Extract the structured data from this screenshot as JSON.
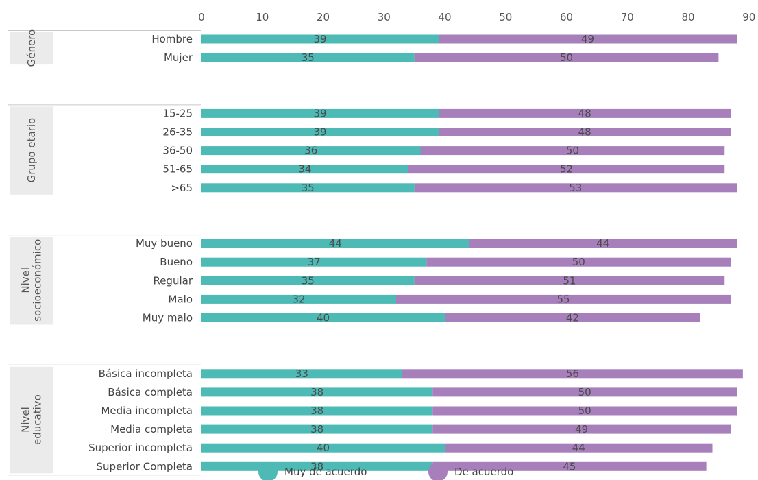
{
  "chart_data": {
    "type": "bar",
    "orientation": "horizontal",
    "stacked": true,
    "xlim": [
      0,
      90
    ],
    "x_ticks": [
      0,
      10,
      20,
      30,
      40,
      50,
      60,
      70,
      80,
      90
    ],
    "grid": false,
    "legend_position": "bottom",
    "colors": {
      "muy": "#4dbab5",
      "de": "#a67fbb"
    },
    "series": [
      {
        "name": "Muy de acuerdo",
        "color": "#4dbab5"
      },
      {
        "name": "De acuerdo",
        "color": "#a67fbb"
      }
    ],
    "groups": [
      {
        "label": [
          "Género"
        ],
        "rows": [
          {
            "label": "Hombre",
            "muy": 39,
            "de": 49
          },
          {
            "label": "Mujer",
            "muy": 35,
            "de": 50
          }
        ]
      },
      {
        "label": [
          "Grupo etario"
        ],
        "rows": [
          {
            "label": "15-25",
            "muy": 39,
            "de": 48
          },
          {
            "label": "26-35",
            "muy": 39,
            "de": 48
          },
          {
            "label": "36-50",
            "muy": 36,
            "de": 50
          },
          {
            "label": "51-65",
            "muy": 34,
            "de": 52
          },
          {
            "label": ">65",
            "muy": 35,
            "de": 53
          }
        ]
      },
      {
        "label": [
          "Nivel",
          "socioeconómico"
        ],
        "rows": [
          {
            "label": "Muy bueno",
            "muy": 44,
            "de": 44
          },
          {
            "label": "Bueno",
            "muy": 37,
            "de": 50
          },
          {
            "label": "Regular",
            "muy": 35,
            "de": 51
          },
          {
            "label": "Malo",
            "muy": 32,
            "de": 55
          },
          {
            "label": "Muy malo",
            "muy": 40,
            "de": 42
          }
        ]
      },
      {
        "label": [
          "Nivel",
          "educativo"
        ],
        "rows": [
          {
            "label": "Básica incompleta",
            "muy": 33,
            "de": 56
          },
          {
            "label": "Básica completa",
            "muy": 38,
            "de": 50
          },
          {
            "label": "Media incompleta",
            "muy": 38,
            "de": 50
          },
          {
            "label": "Media completa",
            "muy": 38,
            "de": 49
          },
          {
            "label": "Superior incompleta",
            "muy": 40,
            "de": 44
          },
          {
            "label": "Superior Completa",
            "muy": 38,
            "de": 45
          }
        ]
      }
    ]
  }
}
